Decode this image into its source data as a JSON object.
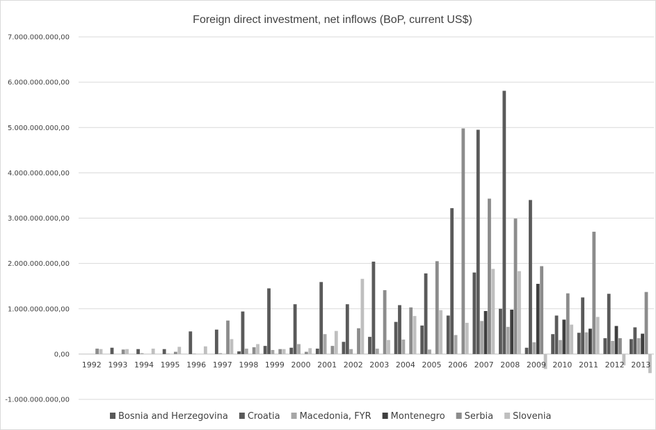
{
  "chart_data": {
    "type": "bar",
    "title": "Foreign direct investment, net inflows (BoP, current US$)",
    "xlabel": "",
    "ylabel": "",
    "ylim": [
      -1000000000,
      7000000000
    ],
    "yticks": [
      7000000000,
      6000000000,
      5000000000,
      4000000000,
      3000000000,
      2000000000,
      1000000000,
      0,
      -1000000000
    ],
    "ytick_labels": [
      "7.000.000.000,00",
      "6.000.000.000,00",
      "5.000.000.000,00",
      "4.000.000.000,00",
      "3.000.000.000,00",
      "2.000.000.000,00",
      "1.000.000.000,00",
      "0,00",
      "-1.000.000.000,00"
    ],
    "grid": true,
    "legend_position": "bottom",
    "categories": [
      "1992",
      "1993",
      "1994",
      "1995",
      "1996",
      "1997",
      "1998",
      "1999",
      "2000",
      "2001",
      "2002",
      "2003",
      "2004",
      "2005",
      "2006",
      "2007",
      "2008",
      "2009",
      "2010",
      "2011",
      "2012",
      "2013"
    ],
    "series": [
      {
        "name": "Bosnia and Herzegovina",
        "color": "#595959",
        "values": [
          0,
          0,
          0,
          0,
          0,
          0,
          60000000,
          180000000,
          140000000,
          120000000,
          270000000,
          380000000,
          710000000,
          630000000,
          850000000,
          1800000000,
          1000000000,
          140000000,
          440000000,
          470000000,
          350000000,
          330000000
        ]
      },
      {
        "name": "Croatia",
        "color": "#5a5a5a",
        "values": [
          0,
          140000000,
          110000000,
          110000000,
          500000000,
          540000000,
          940000000,
          1450000000,
          1100000000,
          1590000000,
          1100000000,
          2040000000,
          1080000000,
          1780000000,
          3220000000,
          4950000000,
          5810000000,
          3400000000,
          850000000,
          1250000000,
          1330000000,
          590000000
        ]
      },
      {
        "name": "Macedonia, FYR",
        "color": "#a6a6a6",
        "values": [
          0,
          0,
          20000000,
          10000000,
          10000000,
          20000000,
          120000000,
          90000000,
          220000000,
          440000000,
          110000000,
          120000000,
          320000000,
          100000000,
          420000000,
          730000000,
          600000000,
          260000000,
          310000000,
          480000000,
          290000000,
          350000000
        ]
      },
      {
        "name": "Montenegro",
        "color": "#3f3f3f",
        "values": [
          0,
          0,
          0,
          0,
          0,
          0,
          0,
          0,
          0,
          0,
          0,
          0,
          0,
          0,
          0,
          950000000,
          980000000,
          1550000000,
          760000000,
          560000000,
          620000000,
          450000000
        ]
      },
      {
        "name": "Serbia",
        "color": "#8c8c8c",
        "values": [
          120000000,
          100000000,
          0,
          50000000,
          0,
          740000000,
          150000000,
          110000000,
          50000000,
          180000000,
          570000000,
          1410000000,
          1030000000,
          2050000000,
          4980000000,
          3430000000,
          2990000000,
          1940000000,
          1340000000,
          2700000000,
          350000000,
          1370000000
        ]
      },
      {
        "name": "Slovenia",
        "color": "#bfbfbf",
        "values": [
          110000000,
          110000000,
          120000000,
          160000000,
          170000000,
          330000000,
          220000000,
          110000000,
          130000000,
          510000000,
          1660000000,
          310000000,
          840000000,
          970000000,
          690000000,
          1880000000,
          1830000000,
          -330000000,
          650000000,
          820000000,
          -250000000,
          -420000000
        ]
      }
    ]
  }
}
